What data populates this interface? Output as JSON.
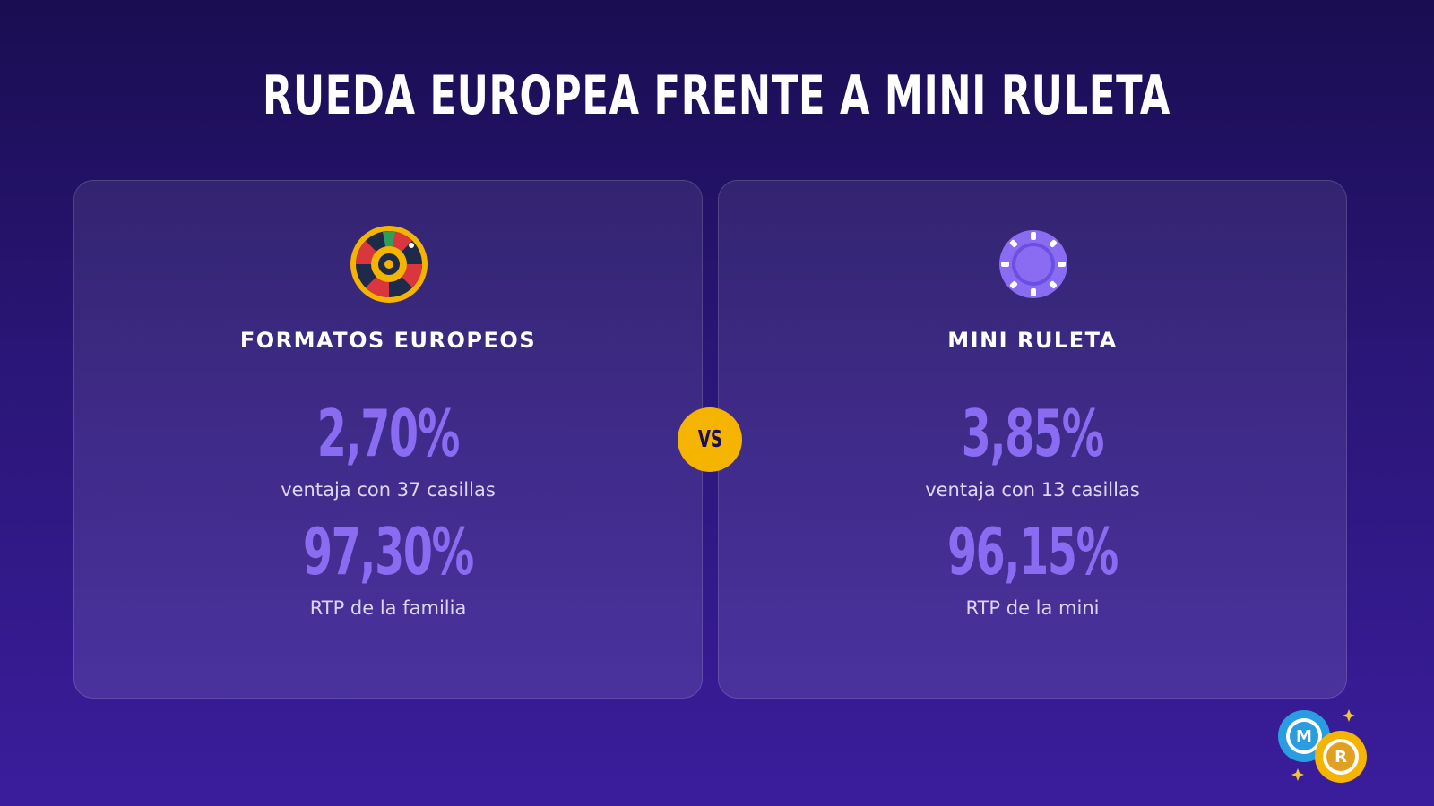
{
  "header": {
    "title": "RUEDA EUROPEA FRENTE A MINI RULETA"
  },
  "cards": [
    {
      "heading": "FORMATOS EUROPEOS",
      "stats": [
        {
          "value": "2,70%",
          "label": "ventaja con 37 casillas"
        },
        {
          "value": "97,30%",
          "label": "RTP de la familia"
        }
      ]
    },
    {
      "heading": "MINI RULETA",
      "stats": [
        {
          "value": "3,85%",
          "label": "ventaja con 13 casillas"
        },
        {
          "value": "96,15%",
          "label": "RTP de la mini"
        }
      ]
    }
  ],
  "versus": "VS",
  "logo": {
    "chip_1": "M",
    "chip_2": "R"
  }
}
